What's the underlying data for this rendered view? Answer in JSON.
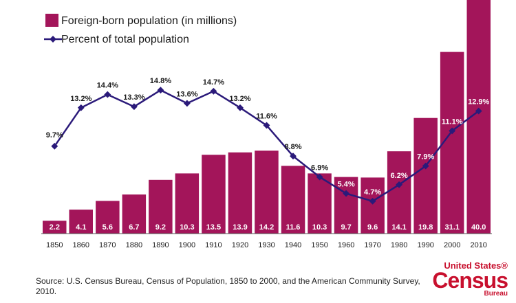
{
  "colors": {
    "bar": "#a3155a",
    "line": "#2b1a7a",
    "axis": "#555555",
    "logo": "#c8102e"
  },
  "chart_data": {
    "type": "bar",
    "categories": [
      "1850",
      "1860",
      "1870",
      "1880",
      "1890",
      "1900",
      "1910",
      "1920",
      "1930",
      "1940",
      "1950",
      "1960",
      "1970",
      "1980",
      "1990",
      "2000",
      "2010"
    ],
    "series": [
      {
        "name": "Foreign-born population (in millions)",
        "type": "bar",
        "values": [
          2.2,
          4.1,
          5.6,
          6.7,
          9.2,
          10.3,
          13.5,
          13.9,
          14.2,
          11.6,
          10.3,
          9.7,
          9.6,
          14.1,
          19.8,
          31.1,
          40.0
        ],
        "labels": [
          "2.2",
          "4.1",
          "5.6",
          "6.7",
          "9.2",
          "10.3",
          "13.5",
          "13.9",
          "14.2",
          "11.6",
          "10.3",
          "9.7",
          "9.6",
          "14.1",
          "19.8",
          "31.1",
          "40.0"
        ]
      },
      {
        "name": "Percent of total population",
        "type": "line",
        "values": [
          9.7,
          13.2,
          14.4,
          13.3,
          14.8,
          13.6,
          14.7,
          13.2,
          11.6,
          8.8,
          6.9,
          5.4,
          4.7,
          6.2,
          7.9,
          11.1,
          12.9
        ],
        "labels": [
          "9.7%",
          "13.2%",
          "14.4%",
          "13.3%",
          "14.8%",
          "13.6%",
          "14.7%",
          "13.2%",
          "11.6%",
          "8.8%",
          "6.9%",
          "5.4%",
          "4.7%",
          "6.2%",
          "7.9%",
          "11.1%",
          "12.9%"
        ]
      }
    ],
    "legend_position": "top-left",
    "grid": false
  },
  "source_note": "Source: U.S. Census Bureau, Census of Population, 1850 to 2000, and the American Community Survey, 2010.",
  "logo": {
    "top": "United States®",
    "main": "Census",
    "bottom": "Bureau"
  }
}
